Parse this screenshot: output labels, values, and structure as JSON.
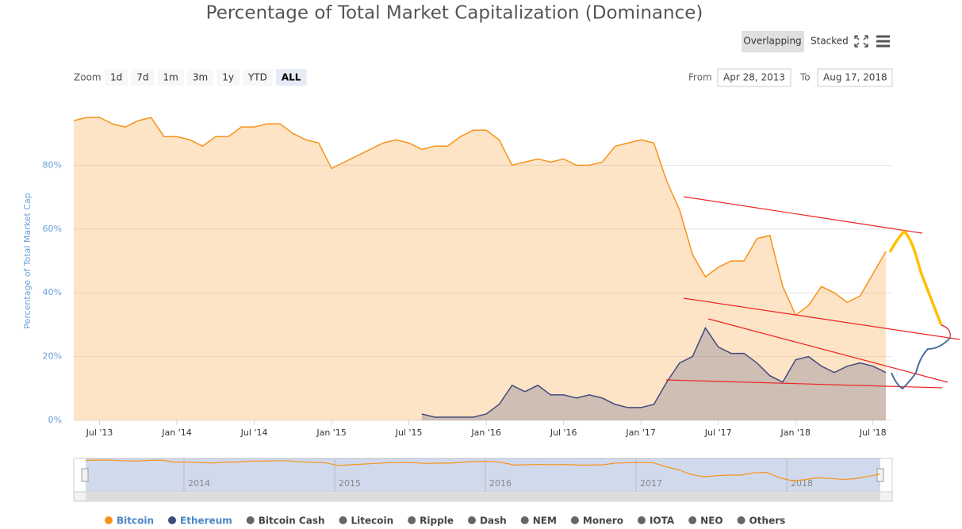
{
  "ui": {
    "modes": [
      "Overlapping",
      "Stacked"
    ],
    "zoom_label": "Zoom",
    "zoom_buttons": [
      "1d",
      "7d",
      "1m",
      "3m",
      "1y",
      "YTD",
      "ALL"
    ],
    "from_label": "From",
    "from": "Apr 28, 2013",
    "to_label": "To",
    "to": "Aug 17, 2018"
  },
  "chart_data": {
    "type": "area",
    "title": "Percentage of Total Market Capitalization (Dominance)",
    "ylabel": "Percentage of Total Market Cap",
    "x": [
      "2013-05",
      "2013-06",
      "2013-07",
      "2013-08",
      "2013-09",
      "2013-10",
      "2013-11",
      "2013-12",
      "2014-01",
      "2014-02",
      "2014-03",
      "2014-04",
      "2014-05",
      "2014-06",
      "2014-07",
      "2014-08",
      "2014-09",
      "2014-10",
      "2014-11",
      "2014-12",
      "2015-01",
      "2015-02",
      "2015-03",
      "2015-04",
      "2015-05",
      "2015-06",
      "2015-07",
      "2015-08",
      "2015-09",
      "2015-10",
      "2015-11",
      "2015-12",
      "2016-01",
      "2016-02",
      "2016-03",
      "2016-04",
      "2016-05",
      "2016-06",
      "2016-07",
      "2016-08",
      "2016-09",
      "2016-10",
      "2016-11",
      "2016-12",
      "2017-01",
      "2017-02",
      "2017-03",
      "2017-04",
      "2017-05",
      "2017-06",
      "2017-07",
      "2017-08",
      "2017-09",
      "2017-10",
      "2017-11",
      "2017-12",
      "2018-01",
      "2018-02",
      "2018-03",
      "2018-04",
      "2018-05",
      "2018-06",
      "2018-07",
      "2018-08"
    ],
    "xticks": [
      {
        "value": "2013-07",
        "label": "Jul '13"
      },
      {
        "value": "2014-01",
        "label": "Jan '14"
      },
      {
        "value": "2014-07",
        "label": "Jul '14"
      },
      {
        "value": "2015-01",
        "label": "Jan '15"
      },
      {
        "value": "2015-07",
        "label": "Jul '15"
      },
      {
        "value": "2016-01",
        "label": "Jan '16"
      },
      {
        "value": "2016-07",
        "label": "Jul '16"
      },
      {
        "value": "2017-01",
        "label": "Jan '17"
      },
      {
        "value": "2017-07",
        "label": "Jul '17"
      },
      {
        "value": "2018-01",
        "label": "Jan '18"
      },
      {
        "value": "2018-07",
        "label": "Jul '18"
      }
    ],
    "ylim": [
      0,
      100
    ],
    "yticks": [
      {
        "value": 0,
        "label": "0%"
      },
      {
        "value": 20,
        "label": "20%"
      },
      {
        "value": 40,
        "label": "40%"
      },
      {
        "value": 60,
        "label": "60%"
      },
      {
        "value": 80,
        "label": "80%"
      }
    ],
    "grid": true,
    "series": [
      {
        "name": "Bitcoin",
        "color": "#f7931a",
        "values": [
          94,
          95,
          95,
          93,
          92,
          94,
          95,
          89,
          89,
          88,
          86,
          89,
          89,
          92,
          92,
          93,
          93,
          90,
          88,
          87,
          79,
          81,
          83,
          85,
          87,
          88,
          87,
          85,
          86,
          86,
          89,
          91,
          91,
          88,
          80,
          81,
          82,
          81,
          82,
          80,
          80,
          81,
          86,
          87,
          88,
          87,
          75,
          66,
          52,
          45,
          48,
          50,
          50,
          57,
          58,
          42,
          33,
          36,
          42,
          40,
          37,
          39,
          46,
          53
        ]
      },
      {
        "name": "Ethereum",
        "color": "#434a7e",
        "values": [
          null,
          null,
          null,
          null,
          null,
          null,
          null,
          null,
          null,
          null,
          null,
          null,
          null,
          null,
          null,
          null,
          null,
          null,
          null,
          null,
          null,
          null,
          null,
          null,
          null,
          null,
          null,
          2,
          1,
          1,
          1,
          1,
          2,
          5,
          11,
          9,
          11,
          8,
          8,
          7,
          8,
          7,
          5,
          4,
          4,
          5,
          12,
          18,
          20,
          29,
          23,
          21,
          21,
          18,
          14,
          12,
          19,
          20,
          17,
          15,
          17,
          18,
          17,
          15
        ]
      }
    ],
    "inactive_series": [
      {
        "name": "Bitcoin Cash",
        "color": "#666666"
      },
      {
        "name": "Litecoin",
        "color": "#666666"
      },
      {
        "name": "Ripple",
        "color": "#666666"
      },
      {
        "name": "Dash",
        "color": "#666666"
      },
      {
        "name": "NEM",
        "color": "#666666"
      },
      {
        "name": "Monero",
        "color": "#666666"
      },
      {
        "name": "IOTA",
        "color": "#666666"
      },
      {
        "name": "NEO",
        "color": "#666666"
      },
      {
        "name": "Others",
        "color": "#666666"
      }
    ],
    "navigator_labels": [
      2014,
      2015,
      2016,
      2017,
      2018
    ]
  }
}
